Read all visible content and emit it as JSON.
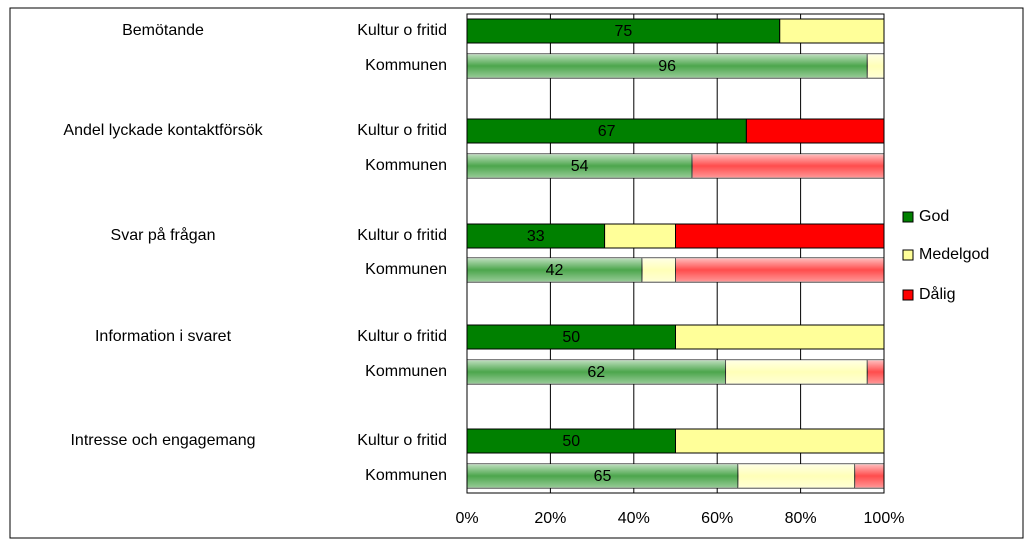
{
  "chart_data": {
    "type": "stacked_barh",
    "groups": [
      "Bemötande",
      "Andel lyckade kontaktförsök",
      "Svar på frågan",
      "Information i svaret",
      "Intresse och engagemang"
    ],
    "categories": [
      "Kultur o fritid",
      "Kommunen",
      "Kultur o fritid",
      "Kommunen",
      "Kultur o fritid",
      "Kommunen",
      "Kultur o fritid",
      "Kommunen",
      "Kultur o fritid",
      "Kommunen"
    ],
    "series": [
      {
        "name": "God",
        "color": "#008000",
        "values": [
          75,
          96,
          67,
          54,
          33,
          42,
          50,
          62,
          50,
          65
        ]
      },
      {
        "name": "Medelgod",
        "color": "#ffff99",
        "values": [
          25,
          4,
          0,
          0,
          17,
          8,
          50,
          34,
          50,
          28
        ]
      },
      {
        "name": "Dålig",
        "color": "#ff0000",
        "values": [
          0,
          0,
          33,
          46,
          50,
          50,
          0,
          4,
          0,
          7
        ]
      }
    ],
    "xlim": [
      0,
      100
    ],
    "xticks": [
      {
        "value": 0,
        "label": "0%"
      },
      {
        "value": 20,
        "label": "20%"
      },
      {
        "value": 40,
        "label": "40%"
      },
      {
        "value": 60,
        "label": "60%"
      },
      {
        "value": 80,
        "label": "80%"
      },
      {
        "value": 100,
        "label": "100%"
      }
    ],
    "grid": true,
    "legend": "right"
  }
}
